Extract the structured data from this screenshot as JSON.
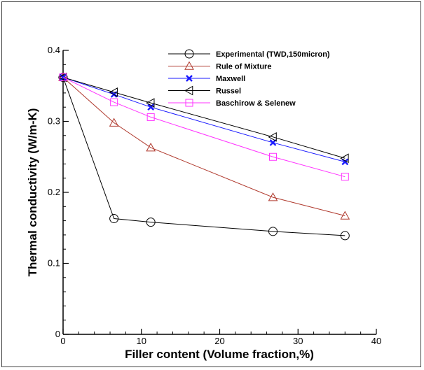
{
  "chart_data": {
    "type": "line",
    "xlabel": "Filler content (Volume fraction,%)",
    "ylabel": "Thermal conductivity (W/m-K)",
    "xlim": [
      0,
      40
    ],
    "ylim": [
      0,
      0.4
    ],
    "xticks": [
      0,
      10,
      20,
      30,
      40
    ],
    "yticks": [
      0,
      0.1,
      0.2,
      0.3,
      0.4
    ],
    "grid": false,
    "legend_position": "top-right",
    "series": [
      {
        "name": "Experimental (TWD,150micron)",
        "color": "#000000",
        "marker": "circle",
        "x": [
          0,
          6.5,
          11.2,
          26.8,
          36
        ],
        "y": [
          0.362,
          0.163,
          0.158,
          0.145,
          0.139
        ]
      },
      {
        "name": "Rule of Mixture",
        "color": "#b03a2e",
        "marker": "triangle-up",
        "x": [
          0,
          6.5,
          11.2,
          26.8,
          36
        ],
        "y": [
          0.362,
          0.298,
          0.263,
          0.193,
          0.167
        ]
      },
      {
        "name": "Maxwell",
        "color": "#1a1aff",
        "marker": "x",
        "x": [
          0,
          6.5,
          11.2,
          26.8,
          36
        ],
        "y": [
          0.362,
          0.338,
          0.32,
          0.27,
          0.243
        ]
      },
      {
        "name": "Russel",
        "color": "#000000",
        "marker": "triangle-left",
        "x": [
          0,
          6.5,
          11.2,
          26.8,
          36
        ],
        "y": [
          0.362,
          0.341,
          0.326,
          0.278,
          0.248
        ]
      },
      {
        "name": "Baschirow & Selenew",
        "color": "#ff33ff",
        "marker": "square",
        "x": [
          0,
          6.5,
          11.2,
          26.8,
          36
        ],
        "y": [
          0.362,
          0.327,
          0.306,
          0.25,
          0.222
        ]
      }
    ]
  }
}
